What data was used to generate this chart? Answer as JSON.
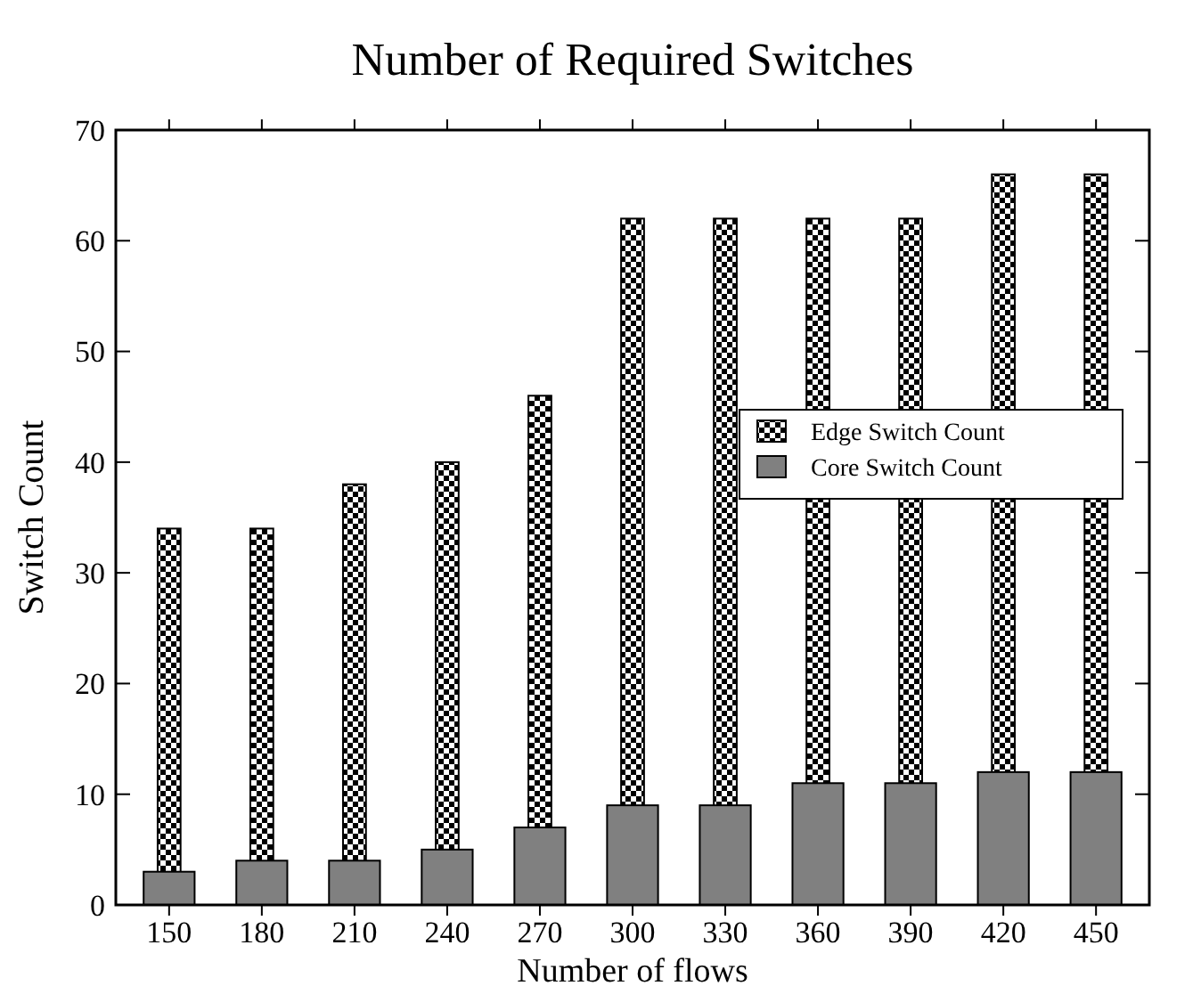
{
  "chart_data": {
    "type": "bar",
    "title": "Number of Required Switches",
    "xlabel": "Number of flows",
    "ylabel": "Switch Count",
    "categories": [
      "150",
      "180",
      "210",
      "240",
      "270",
      "300",
      "330",
      "360",
      "390",
      "420",
      "450"
    ],
    "series": [
      {
        "name": "Edge Switch Count",
        "color": "#000000",
        "values": [
          34,
          34,
          38,
          40,
          46,
          62,
          62,
          62,
          62,
          66,
          66
        ]
      },
      {
        "name": "Core Switch Count",
        "color": "#808080",
        "values": [
          3,
          4,
          4,
          5,
          7,
          9,
          9,
          11,
          11,
          12,
          12
        ]
      }
    ],
    "ylim": [
      0,
      70
    ],
    "yticks": [
      0,
      10,
      20,
      30,
      40,
      50,
      60,
      70
    ],
    "grid": false,
    "legend": "right"
  }
}
